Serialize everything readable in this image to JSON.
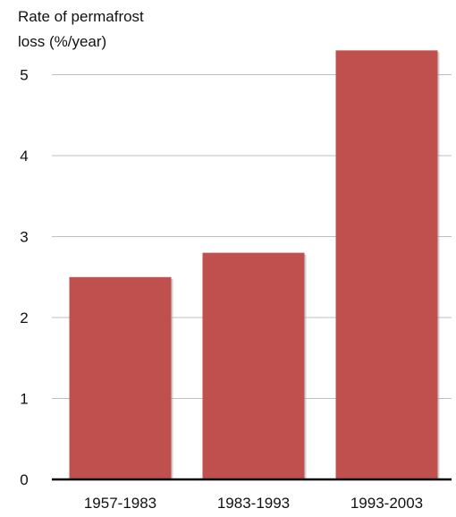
{
  "chart_data": {
    "type": "bar",
    "title": "",
    "xlabel": "",
    "ylabel_lines": [
      "Rate of permafrost",
      "loss (%/year)"
    ],
    "categories": [
      "1957-1983",
      "1983-1993",
      "1993-2003"
    ],
    "values": [
      2.5,
      2.8,
      5.3
    ],
    "ylim": [
      0,
      5.3
    ],
    "yticks": [
      0,
      1,
      2,
      3,
      4,
      5
    ],
    "grid": true,
    "legend": "none",
    "bar_color": "#c0504d",
    "grid_color": "#bfbfbf",
    "axis_color": "#000000"
  }
}
